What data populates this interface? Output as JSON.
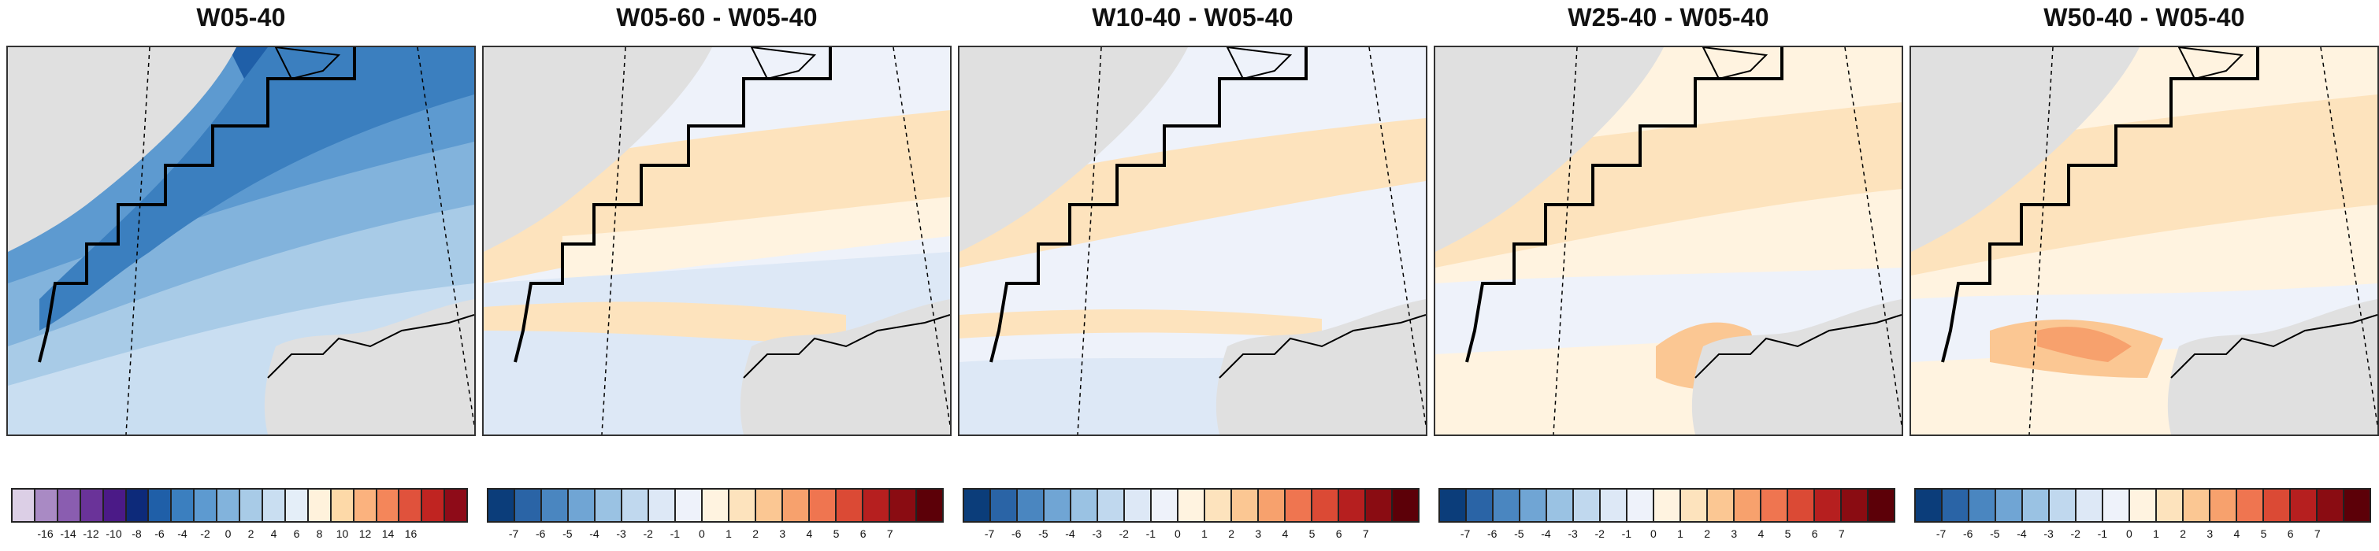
{
  "panels": [
    {
      "title": "W05-40",
      "scale": "absolute",
      "colorbar": {
        "colors": [
          "#dccfe6",
          "#a98ac4",
          "#8a5db0",
          "#6a3399",
          "#4b1a87",
          "#0d2a7a",
          "#1f5fa8",
          "#3b7fbf",
          "#5d9ad0",
          "#82b3dc",
          "#a8cbe7",
          "#c9def1",
          "#e4eef8",
          "#fff2dc",
          "#fdd9a8",
          "#fbb27e",
          "#f4865a",
          "#e0523c",
          "#c02421",
          "#8e0b18"
        ],
        "tick_labels": [
          "-16",
          "-14",
          "-12",
          "-10",
          "-8",
          "-6",
          "-4",
          "-2",
          "0",
          "2",
          "4",
          "6",
          "8",
          "10",
          "12",
          "14",
          "16"
        ]
      }
    },
    {
      "title": "W05-60 - W05-40",
      "scale": "difference",
      "colorbar": {
        "colors": [
          "#0b3d7a",
          "#2a64a6",
          "#4a86c0",
          "#70a5d4",
          "#9ac2e3",
          "#c0d8ee",
          "#dde8f6",
          "#eef2fa",
          "#fff3e0",
          "#fde3bd",
          "#fbc793",
          "#f7a16d",
          "#ef7550",
          "#db4a35",
          "#b61f1f",
          "#8a0c12",
          "#5c0008"
        ],
        "tick_labels": [
          "-7",
          "-6",
          "-5",
          "-4",
          "-3",
          "-2",
          "-1",
          "0",
          "1",
          "2",
          "3",
          "4",
          "5",
          "6",
          "7"
        ]
      }
    },
    {
      "title": "W10-40 - W05-40",
      "scale": "difference",
      "colorbar": {
        "colors": [
          "#0b3d7a",
          "#2a64a6",
          "#4a86c0",
          "#70a5d4",
          "#9ac2e3",
          "#c0d8ee",
          "#dde8f6",
          "#eef2fa",
          "#fff3e0",
          "#fde3bd",
          "#fbc793",
          "#f7a16d",
          "#ef7550",
          "#db4a35",
          "#b61f1f",
          "#8a0c12",
          "#5c0008"
        ],
        "tick_labels": [
          "-7",
          "-6",
          "-5",
          "-4",
          "-3",
          "-2",
          "-1",
          "0",
          "1",
          "2",
          "3",
          "4",
          "5",
          "6",
          "7"
        ]
      }
    },
    {
      "title": "W25-40 - W05-40",
      "scale": "difference",
      "colorbar": {
        "colors": [
          "#0b3d7a",
          "#2a64a6",
          "#4a86c0",
          "#70a5d4",
          "#9ac2e3",
          "#c0d8ee",
          "#dde8f6",
          "#eef2fa",
          "#fff3e0",
          "#fde3bd",
          "#fbc793",
          "#f7a16d",
          "#ef7550",
          "#db4a35",
          "#b61f1f",
          "#8a0c12",
          "#5c0008"
        ],
        "tick_labels": [
          "-7",
          "-6",
          "-5",
          "-4",
          "-3",
          "-2",
          "-1",
          "0",
          "1",
          "2",
          "3",
          "4",
          "5",
          "6",
          "7"
        ]
      }
    },
    {
      "title": "W50-40 - W05-40",
      "scale": "difference",
      "colorbar": {
        "colors": [
          "#0b3d7a",
          "#2a64a6",
          "#4a86c0",
          "#70a5d4",
          "#9ac2e3",
          "#c0d8ee",
          "#dde8f6",
          "#eef2fa",
          "#fff3e0",
          "#fde3bd",
          "#fbc793",
          "#f7a16d",
          "#ef7550",
          "#db4a35",
          "#b61f1f",
          "#8a0c12",
          "#5c0008"
        ],
        "tick_labels": [
          "-7",
          "-6",
          "-5",
          "-4",
          "-3",
          "-2",
          "-1",
          "0",
          "1",
          "2",
          "3",
          "4",
          "5",
          "6",
          "7"
        ]
      }
    }
  ],
  "colors": {
    "land": "#e0e0e0",
    "boundary": "#000000"
  }
}
